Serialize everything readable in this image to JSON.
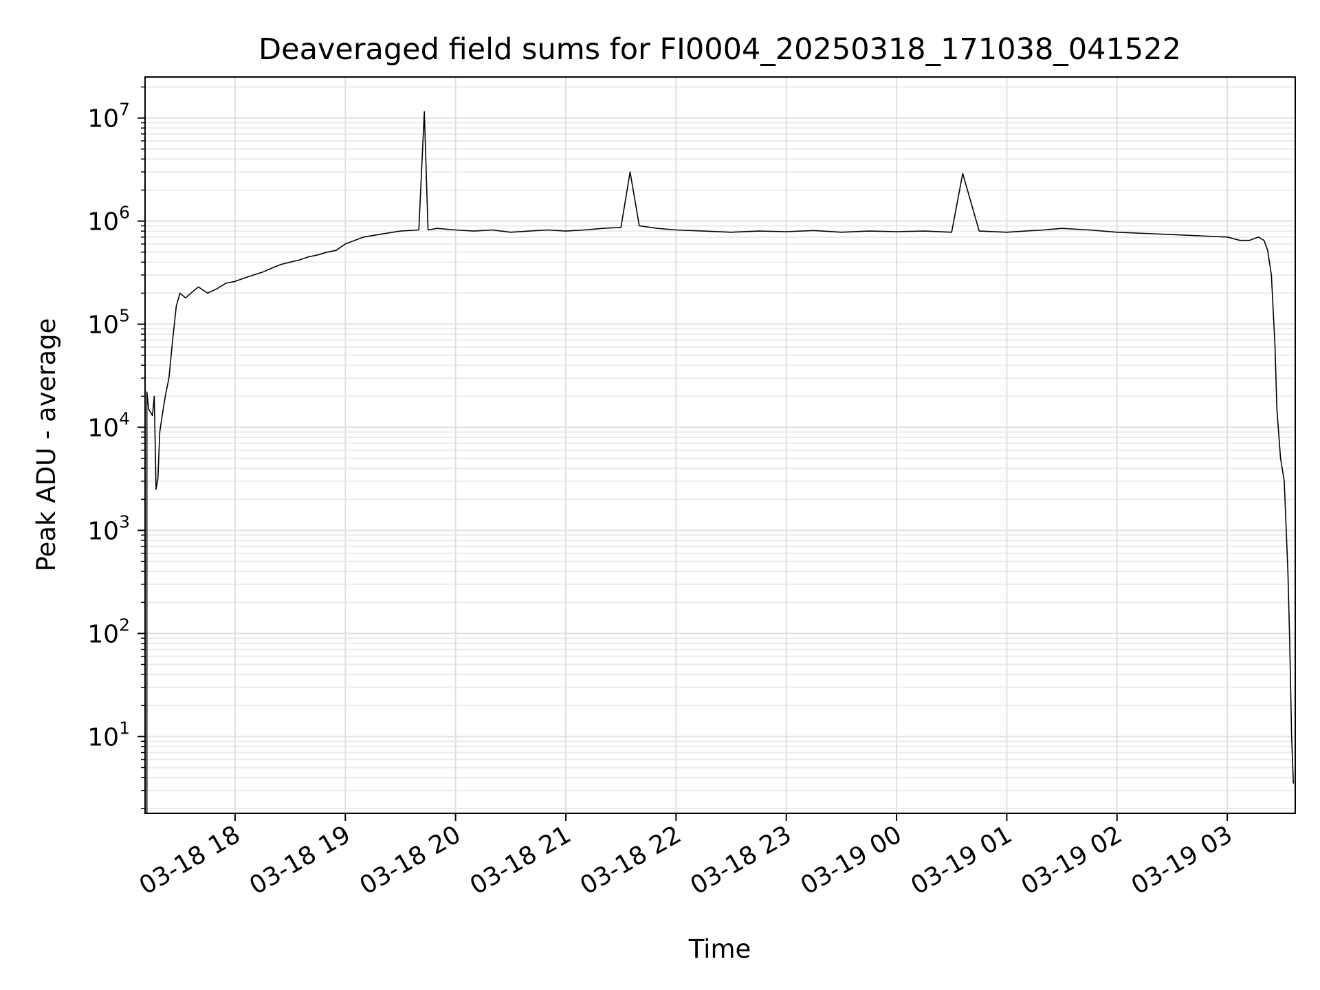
{
  "chart_data": {
    "type": "line",
    "title": "Deaveraged field sums for FI0004_20250318_171038_041522",
    "xlabel": "Time",
    "ylabel": "Peak ADU - average",
    "yscale": "log",
    "grid": true,
    "line_color": "#000000",
    "x_ticks": [
      "03-18 18",
      "03-18 19",
      "03-18 20",
      "03-18 21",
      "03-18 22",
      "03-18 23",
      "03-19 00",
      "03-19 01",
      "03-19 02",
      "03-19 03"
    ],
    "y_ticks": [
      {
        "base": "10",
        "exp": "1",
        "value": 10
      },
      {
        "base": "10",
        "exp": "2",
        "value": 100
      },
      {
        "base": "10",
        "exp": "3",
        "value": 1000
      },
      {
        "base": "10",
        "exp": "4",
        "value": 10000
      },
      {
        "base": "10",
        "exp": "5",
        "value": 100000
      },
      {
        "base": "10",
        "exp": "6",
        "value": 1000000
      },
      {
        "base": "10",
        "exp": "7",
        "value": 10000000
      }
    ],
    "xlim": [
      "2025-03-18 17:11",
      "2025-03-19 03:37"
    ],
    "ylim": [
      1.8,
      25000000
    ],
    "series": [
      {
        "x": [
          "2025-03-18 17:12",
          "2025-03-18 17:12",
          "2025-03-18 17:13",
          "2025-03-18 17:14",
          "2025-03-18 17:15",
          "2025-03-18 17:16",
          "2025-03-18 17:17",
          "2025-03-18 17:18",
          "2025-03-18 17:19",
          "2025-03-18 17:20",
          "2025-03-18 17:22",
          "2025-03-18 17:24",
          "2025-03-18 17:26",
          "2025-03-18 17:28",
          "2025-03-18 17:30",
          "2025-03-18 17:33",
          "2025-03-18 17:36",
          "2025-03-18 17:40",
          "2025-03-18 17:45",
          "2025-03-18 17:50",
          "2025-03-18 17:55",
          "2025-03-18 18:00",
          "2025-03-18 18:05",
          "2025-03-18 18:10",
          "2025-03-18 18:15",
          "2025-03-18 18:20",
          "2025-03-18 18:25",
          "2025-03-18 18:30",
          "2025-03-18 18:35",
          "2025-03-18 18:40",
          "2025-03-18 18:45",
          "2025-03-18 18:50",
          "2025-03-18 18:55",
          "2025-03-18 19:00",
          "2025-03-18 19:05",
          "2025-03-18 19:10",
          "2025-03-18 19:20",
          "2025-03-18 19:30",
          "2025-03-18 19:40",
          "2025-03-18 19:43",
          "2025-03-18 19:45",
          "2025-03-18 19:50",
          "2025-03-18 20:00",
          "2025-03-18 20:10",
          "2025-03-18 20:20",
          "2025-03-18 20:30",
          "2025-03-18 20:40",
          "2025-03-18 20:50",
          "2025-03-18 21:00",
          "2025-03-18 21:10",
          "2025-03-18 21:20",
          "2025-03-18 21:30",
          "2025-03-18 21:35",
          "2025-03-18 21:40",
          "2025-03-18 21:50",
          "2025-03-18 22:00",
          "2025-03-18 22:15",
          "2025-03-18 22:30",
          "2025-03-18 22:45",
          "2025-03-18 23:00",
          "2025-03-18 23:15",
          "2025-03-18 23:30",
          "2025-03-18 23:45",
          "2025-03-19 00:00",
          "2025-03-19 00:15",
          "2025-03-19 00:30",
          "2025-03-19 00:36",
          "2025-03-19 00:45",
          "2025-03-19 01:00",
          "2025-03-19 01:10",
          "2025-03-19 01:20",
          "2025-03-19 01:30",
          "2025-03-19 01:45",
          "2025-03-19 02:00",
          "2025-03-19 02:15",
          "2025-03-19 02:30",
          "2025-03-19 02:45",
          "2025-03-19 03:00",
          "2025-03-19 03:07",
          "2025-03-19 03:12",
          "2025-03-19 03:17",
          "2025-03-19 03:20",
          "2025-03-19 03:22",
          "2025-03-19 03:24",
          "2025-03-19 03:26",
          "2025-03-19 03:27",
          "2025-03-19 03:29",
          "2025-03-19 03:31",
          "2025-03-19 03:33",
          "2025-03-19 03:34",
          "2025-03-19 03:35",
          "2025-03-19 03:36"
        ],
        "y": [
          1.8,
          22000,
          15000,
          14000,
          13000,
          20000,
          2500,
          3200,
          9000,
          12000,
          20000,
          30000,
          70000,
          150000,
          200000,
          180000,
          200000,
          230000,
          200000,
          220000,
          250000,
          260000,
          280000,
          300000,
          320000,
          350000,
          380000,
          400000,
          420000,
          450000,
          470000,
          500000,
          520000,
          600000,
          650000,
          700000,
          750000,
          800000,
          820000,
          11500000,
          820000,
          850000,
          820000,
          800000,
          820000,
          780000,
          800000,
          820000,
          800000,
          820000,
          850000,
          870000,
          3000000,
          900000,
          850000,
          820000,
          800000,
          780000,
          800000,
          790000,
          810000,
          780000,
          800000,
          790000,
          800000,
          780000,
          2900000,
          800000,
          780000,
          800000,
          820000,
          850000,
          820000,
          780000,
          760000,
          740000,
          720000,
          700000,
          650000,
          650000,
          700000,
          650000,
          520000,
          300000,
          60000,
          15000,
          5000,
          3000,
          400,
          80,
          10,
          3.5
        ]
      }
    ]
  }
}
